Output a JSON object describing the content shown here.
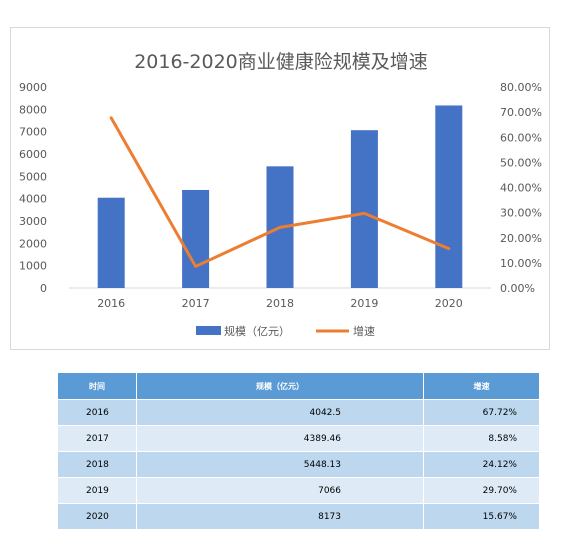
{
  "chart_data": {
    "type": "bar",
    "title": "2016-2020商业健康险规模及增速",
    "categories": [
      "2016",
      "2017",
      "2018",
      "2019",
      "2020"
    ],
    "series": [
      {
        "name": "规模（亿元）",
        "type": "bar",
        "axis": "left",
        "color": "#4472c4",
        "values": [
          4042.5,
          4389.46,
          5448.13,
          7066,
          8173
        ]
      },
      {
        "name": "增速",
        "type": "line",
        "axis": "right",
        "color": "#ed7d31",
        "values": [
          67.72,
          8.58,
          24.12,
          29.7,
          15.67
        ]
      }
    ],
    "ylim": [
      0,
      9000
    ],
    "y_ticks": [
      "9000",
      "8000",
      "7000",
      "6000",
      "5000",
      "4000",
      "3000",
      "2000",
      "1000",
      "0"
    ],
    "y2lim": [
      0,
      80
    ],
    "y2_ticks": [
      "80.00%",
      "70.00%",
      "60.00%",
      "50.00%",
      "40.00%",
      "30.00%",
      "20.00%",
      "10.00%",
      "0.00%"
    ],
    "grid": false,
    "legend_position": "bottom"
  },
  "table": {
    "headers": [
      "时间",
      "规模（亿元）",
      "增速"
    ],
    "rows": [
      [
        "2016",
        "4042.5",
        "67.72%"
      ],
      [
        "2017",
        "4389.46",
        "8.58%"
      ],
      [
        "2018",
        "5448.13",
        "24.12%"
      ],
      [
        "2019",
        "7066",
        "29.70%"
      ],
      [
        "2020",
        "8173",
        "15.67%"
      ]
    ]
  }
}
